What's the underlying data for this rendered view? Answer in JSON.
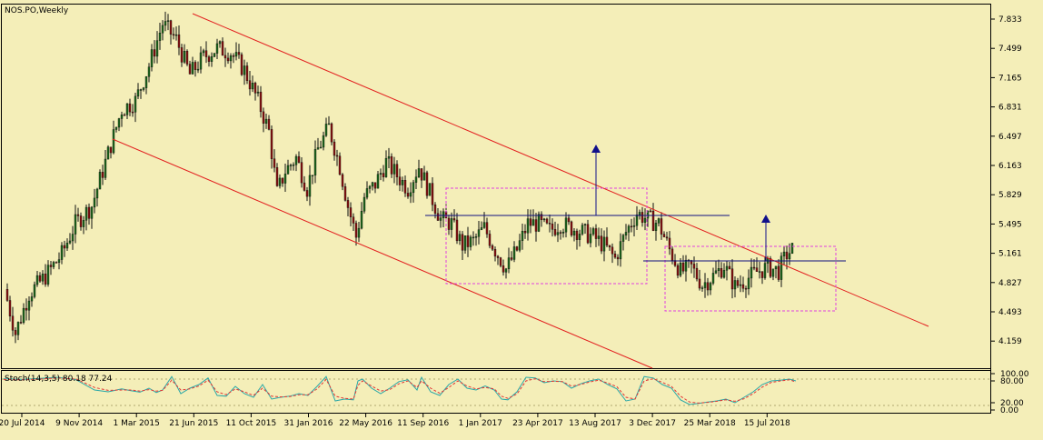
{
  "chart_data": [
    {
      "type": "candlestick",
      "title": "NOS.PO,Weekly",
      "ylim": [
        3.95,
        8.0
      ],
      "y_ticks": [
        "7.833",
        "7.499",
        "7.165",
        "6.831",
        "6.497",
        "6.163",
        "5.829",
        "5.495",
        "5.161",
        "4.827",
        "4.493",
        "4.159"
      ],
      "x_ticks": [
        "20 Jul 2014",
        "9 Nov 2014",
        "1 Mar 2015",
        "21 Jun 2015",
        "11 Oct 2015",
        "31 Jan 2016",
        "22 May 2016",
        "11 Sep 2016",
        "1 Jan 2017",
        "23 Apr 2017",
        "13 Aug 2017",
        "3 Dec 2017",
        "25 Mar 2018",
        "15 Jul 2018"
      ],
      "close_path": [
        [
          0,
          4.75
        ],
        [
          4,
          4.25
        ],
        [
          9,
          4.7
        ],
        [
          15,
          4.9
        ],
        [
          21,
          5.15
        ],
        [
          26,
          5.5
        ],
        [
          32,
          5.7
        ],
        [
          37,
          6.2
        ],
        [
          43,
          6.8
        ],
        [
          48,
          6.9
        ],
        [
          53,
          7.3
        ],
        [
          58,
          7.78
        ],
        [
          63,
          7.6
        ],
        [
          68,
          7.2
        ],
        [
          73,
          7.4
        ],
        [
          78,
          7.5
        ],
        [
          83,
          7.45
        ],
        [
          88,
          7.25
        ],
        [
          93,
          6.9
        ],
        [
          97,
          6.55
        ],
        [
          100,
          5.85
        ],
        [
          103,
          6.1
        ],
        [
          107,
          6.25
        ],
        [
          111,
          5.9
        ],
        [
          115,
          6.35
        ],
        [
          119,
          6.6
        ],
        [
          123,
          6.15
        ],
        [
          126,
          5.7
        ],
        [
          129,
          5.35
        ],
        [
          132,
          5.8
        ],
        [
          136,
          5.95
        ],
        [
          140,
          6.2
        ],
        [
          144,
          6.05
        ],
        [
          148,
          5.9
        ],
        [
          152,
          6.15
        ],
        [
          156,
          5.85
        ],
        [
          160,
          5.55
        ],
        [
          164,
          5.5
        ],
        [
          168,
          5.25
        ],
        [
          172,
          5.3
        ],
        [
          176,
          5.45
        ],
        [
          180,
          5.2
        ],
        [
          184,
          4.98
        ],
        [
          188,
          5.2
        ],
        [
          192,
          5.5
        ],
        [
          196,
          5.5
        ],
        [
          200,
          5.42
        ],
        [
          204,
          5.5
        ],
        [
          208,
          5.45
        ],
        [
          212,
          5.4
        ],
        [
          216,
          5.35
        ],
        [
          220,
          5.25
        ],
        [
          224,
          5.1
        ],
        [
          228,
          5.4
        ],
        [
          232,
          5.62
        ],
        [
          236,
          5.55
        ],
        [
          240,
          5.5
        ],
        [
          244,
          5.2
        ],
        [
          248,
          4.95
        ],
        [
          252,
          5.0
        ],
        [
          256,
          4.8
        ],
        [
          260,
          4.9
        ],
        [
          264,
          5.02
        ],
        [
          268,
          4.78
        ],
        [
          272,
          4.86
        ],
        [
          276,
          4.95
        ],
        [
          280,
          5.0
        ],
        [
          284,
          4.96
        ],
        [
          287,
          5.15
        ],
        [
          289,
          5.2
        ]
      ],
      "stochastic": {
        "label": "Stoch(14,3,5) 80.18 77.24",
        "scale": [
          "100.00",
          "80.00",
          "20.00",
          "0.00"
        ],
        "levels": [
          80,
          20
        ],
        "main_path": [
          [
            0,
            86
          ],
          [
            20,
            84
          ],
          [
            40,
            87
          ],
          [
            60,
            90
          ],
          [
            80,
            83
          ],
          [
            100,
            55
          ],
          [
            115,
            50
          ],
          [
            130,
            58
          ],
          [
            140,
            53
          ],
          [
            150,
            49
          ],
          [
            160,
            60
          ],
          [
            168,
            48
          ],
          [
            175,
            55
          ],
          [
            185,
            92
          ],
          [
            195,
            45
          ],
          [
            205,
            60
          ],
          [
            215,
            70
          ],
          [
            225,
            88
          ],
          [
            235,
            40
          ],
          [
            245,
            38
          ],
          [
            255,
            65
          ],
          [
            265,
            45
          ],
          [
            275,
            35
          ],
          [
            285,
            70
          ],
          [
            295,
            30
          ],
          [
            305,
            35
          ],
          [
            315,
            38
          ],
          [
            325,
            45
          ],
          [
            335,
            40
          ],
          [
            345,
            65
          ],
          [
            355,
            92
          ],
          [
            365,
            25
          ],
          [
            375,
            30
          ],
          [
            385,
            28
          ],
          [
            390,
            80
          ],
          [
            395,
            85
          ],
          [
            405,
            60
          ],
          [
            415,
            45
          ],
          [
            425,
            60
          ],
          [
            435,
            78
          ],
          [
            445,
            83
          ],
          [
            455,
            55
          ],
          [
            460,
            90
          ],
          [
            470,
            50
          ],
          [
            480,
            40
          ],
          [
            490,
            70
          ],
          [
            500,
            85
          ],
          [
            510,
            60
          ],
          [
            520,
            55
          ],
          [
            530,
            66
          ],
          [
            540,
            55
          ],
          [
            548,
            30
          ],
          [
            555,
            28
          ],
          [
            565,
            50
          ],
          [
            575,
            90
          ],
          [
            585,
            88
          ],
          [
            595,
            75
          ],
          [
            605,
            80
          ],
          [
            615,
            78
          ],
          [
            625,
            60
          ],
          [
            635,
            72
          ],
          [
            645,
            80
          ],
          [
            655,
            85
          ],
          [
            665,
            70
          ],
          [
            675,
            58
          ],
          [
            685,
            25
          ],
          [
            695,
            30
          ],
          [
            705,
            92
          ],
          [
            715,
            88
          ],
          [
            725,
            70
          ],
          [
            735,
            60
          ],
          [
            745,
            28
          ],
          [
            755,
            15
          ],
          [
            765,
            18
          ],
          [
            775,
            22
          ],
          [
            785,
            25
          ],
          [
            795,
            30
          ],
          [
            805,
            20
          ],
          [
            815,
            35
          ],
          [
            825,
            50
          ],
          [
            835,
            70
          ],
          [
            845,
            80
          ],
          [
            855,
            82
          ],
          [
            865,
            85
          ],
          [
            872,
            80
          ]
        ],
        "signal_path": [
          [
            0,
            84
          ],
          [
            20,
            83
          ],
          [
            40,
            85
          ],
          [
            60,
            88
          ],
          [
            80,
            85
          ],
          [
            100,
            62
          ],
          [
            115,
            54
          ],
          [
            130,
            55
          ],
          [
            140,
            55
          ],
          [
            150,
            52
          ],
          [
            160,
            56
          ],
          [
            168,
            52
          ],
          [
            175,
            54
          ],
          [
            185,
            82
          ],
          [
            195,
            55
          ],
          [
            205,
            58
          ],
          [
            215,
            66
          ],
          [
            225,
            82
          ],
          [
            235,
            50
          ],
          [
            245,
            42
          ],
          [
            255,
            58
          ],
          [
            265,
            50
          ],
          [
            275,
            40
          ],
          [
            285,
            60
          ],
          [
            295,
            38
          ],
          [
            305,
            36
          ],
          [
            315,
            37
          ],
          [
            325,
            42
          ],
          [
            335,
            42
          ],
          [
            345,
            58
          ],
          [
            355,
            84
          ],
          [
            365,
            38
          ],
          [
            375,
            32
          ],
          [
            385,
            30
          ],
          [
            390,
            68
          ],
          [
            395,
            80
          ],
          [
            405,
            66
          ],
          [
            415,
            52
          ],
          [
            425,
            56
          ],
          [
            435,
            72
          ],
          [
            445,
            80
          ],
          [
            455,
            62
          ],
          [
            460,
            80
          ],
          [
            470,
            60
          ],
          [
            480,
            46
          ],
          [
            490,
            62
          ],
          [
            500,
            80
          ],
          [
            510,
            66
          ],
          [
            520,
            58
          ],
          [
            530,
            62
          ],
          [
            540,
            58
          ],
          [
            548,
            38
          ],
          [
            555,
            32
          ],
          [
            565,
            44
          ],
          [
            575,
            80
          ],
          [
            585,
            86
          ],
          [
            595,
            78
          ],
          [
            605,
            79
          ],
          [
            615,
            78
          ],
          [
            625,
            66
          ],
          [
            635,
            70
          ],
          [
            645,
            77
          ],
          [
            655,
            82
          ],
          [
            665,
            74
          ],
          [
            675,
            64
          ],
          [
            685,
            35
          ],
          [
            695,
            30
          ],
          [
            705,
            80
          ],
          [
            715,
            86
          ],
          [
            725,
            76
          ],
          [
            735,
            65
          ],
          [
            745,
            38
          ],
          [
            755,
            22
          ],
          [
            765,
            19
          ],
          [
            775,
            21
          ],
          [
            785,
            24
          ],
          [
            795,
            28
          ],
          [
            805,
            24
          ],
          [
            815,
            31
          ],
          [
            825,
            45
          ],
          [
            835,
            63
          ],
          [
            845,
            76
          ],
          [
            855,
            80
          ],
          [
            865,
            83
          ],
          [
            872,
            77
          ]
        ]
      }
    }
  ],
  "colors": {
    "background": "#f4eeb8",
    "bull": "#1d6a1d",
    "bear": "#8c1010",
    "channel": "#e21e1e",
    "box": "#e040e0",
    "hline": "#101080",
    "arrow": "#10108a",
    "stoch_main": "#2aa7a7",
    "stoch_signal": "#e23535"
  }
}
